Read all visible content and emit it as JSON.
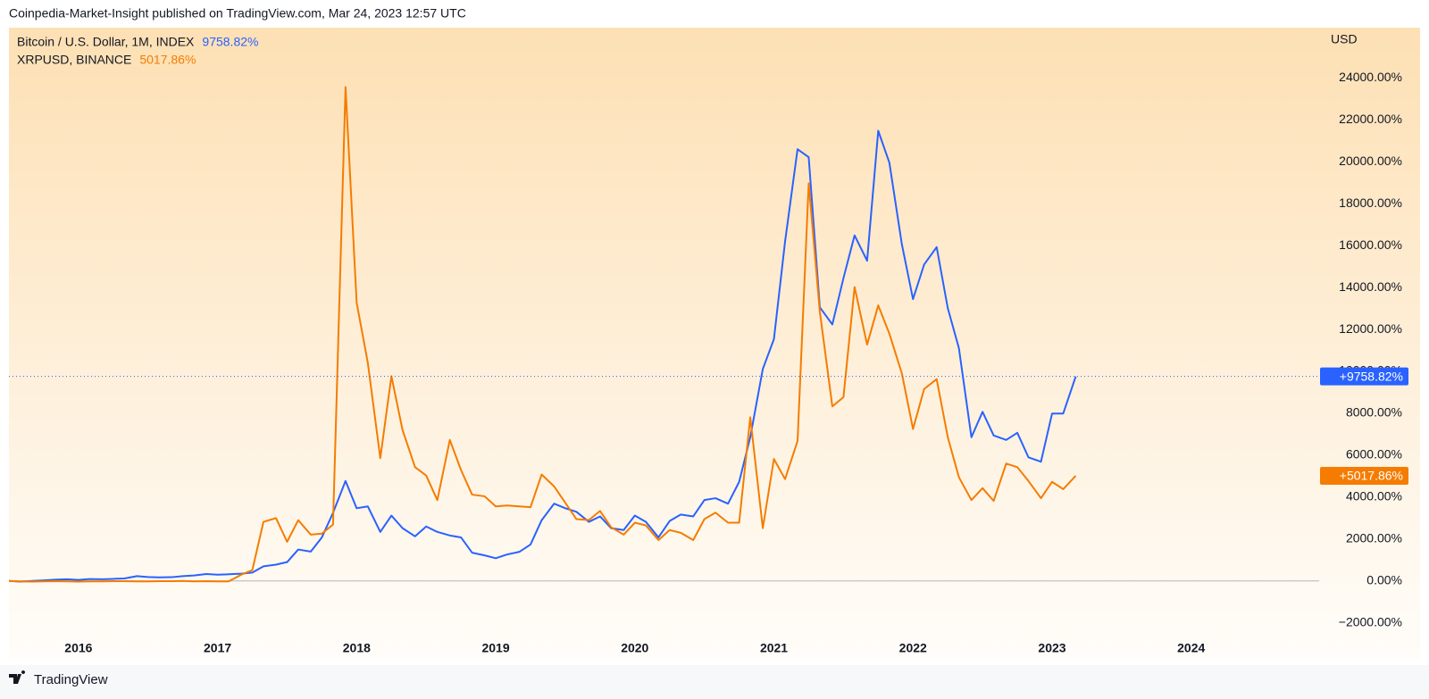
{
  "header": "Coinpedia-Market-Insight published on TradingView.com, Mar 24, 2023 12:57 UTC",
  "footer": "TradingView",
  "chart_data": {
    "type": "line",
    "y_axis_unit": "USD",
    "xlim": [
      2015.5,
      2024.92
    ],
    "xticks": [
      2016,
      2017,
      2018,
      2019,
      2020,
      2021,
      2022,
      2023,
      2024
    ],
    "ylim": [
      -3800,
      26400
    ],
    "yticks": [
      {
        "value": -2000,
        "label": "−2000.00%"
      },
      {
        "value": 0,
        "label": "0.00%"
      },
      {
        "value": 2000,
        "label": "2000.00%"
      },
      {
        "value": 4000,
        "label": "4000.00%"
      },
      {
        "value": 6000,
        "label": "6000.00%"
      },
      {
        "value": 8000,
        "label": "8000.00%"
      },
      {
        "value": 10000,
        "label": "10000.00%"
      },
      {
        "value": 12000,
        "label": "12000.00%"
      },
      {
        "value": 14000,
        "label": "14000.00%"
      },
      {
        "value": 16000,
        "label": "16000.00%"
      },
      {
        "value": 18000,
        "label": "18000.00%"
      },
      {
        "value": 20000,
        "label": "20000.00%"
      },
      {
        "value": 22000,
        "label": "22000.00%"
      },
      {
        "value": 24000,
        "label": "24000.00%"
      }
    ],
    "grid": false,
    "x": [
      2015.5,
      2015.58,
      2015.67,
      2015.75,
      2015.83,
      2015.92,
      2016,
      2016.08,
      2016.17,
      2016.25,
      2016.33,
      2016.42,
      2016.5,
      2016.58,
      2016.67,
      2016.75,
      2016.83,
      2016.92,
      2017,
      2017.08,
      2017.17,
      2017.25,
      2017.33,
      2017.42,
      2017.5,
      2017.58,
      2017.67,
      2017.75,
      2017.83,
      2017.92,
      2018,
      2018.08,
      2018.17,
      2018.25,
      2018.33,
      2018.42,
      2018.5,
      2018.58,
      2018.67,
      2018.75,
      2018.83,
      2018.92,
      2019,
      2019.08,
      2019.17,
      2019.25,
      2019.33,
      2019.42,
      2019.5,
      2019.58,
      2019.67,
      2019.75,
      2019.83,
      2019.92,
      2020,
      2020.08,
      2020.17,
      2020.25,
      2020.33,
      2020.42,
      2020.5,
      2020.58,
      2020.67,
      2020.75,
      2020.83,
      2020.92,
      2021,
      2021.08,
      2021.17,
      2021.25,
      2021.33,
      2021.42,
      2021.5,
      2021.58,
      2021.67,
      2021.75,
      2021.83,
      2021.92,
      2022,
      2022.08,
      2022.17,
      2022.25,
      2022.33,
      2022.42,
      2022.5,
      2022.58,
      2022.67,
      2022.75,
      2022.83,
      2022.92,
      2023,
      2023.08,
      2023.17
    ],
    "series": [
      {
        "name": "Bitcoin / U.S. Dollar, 1M, INDEX",
        "color": "#2962ff",
        "last_value_label": "9758.82%",
        "price_tag": "+9758.82%",
        "values": [
          0,
          -30,
          0,
          30,
          60,
          80,
          50,
          90,
          80,
          100,
          120,
          230,
          190,
          170,
          180,
          230,
          260,
          330,
          300,
          320,
          350,
          400,
          700,
          780,
          900,
          1500,
          1400,
          2080,
          3250,
          4770,
          3470,
          3560,
          2340,
          3120,
          2520,
          2130,
          2600,
          2340,
          2170,
          2080,
          1350,
          1220,
          1085,
          1260,
          1390,
          1740,
          2900,
          3690,
          3470,
          3300,
          2820,
          3080,
          2520,
          2430,
          3120,
          2820,
          2080,
          2860,
          3170,
          3080,
          3860,
          3950,
          3690,
          4730,
          6860,
          10110,
          11540,
          16190,
          20600,
          20220,
          13060,
          12240,
          14450,
          16490,
          15280,
          21480,
          19960,
          16060,
          13450,
          15100,
          15930,
          13020,
          11110,
          6860,
          8070,
          6940,
          6730,
          7070,
          5900,
          5690,
          7990,
          7990,
          9758.82
        ]
      },
      {
        "name": "XRPUSD, BINANCE",
        "color": "#f57c00",
        "last_value_label": "5017.86%",
        "price_tag": "+5017.86%",
        "values": [
          0,
          -20,
          -30,
          -20,
          -10,
          -20,
          -30,
          -20,
          -20,
          -10,
          -10,
          -20,
          -20,
          -10,
          -10,
          0,
          -20,
          -10,
          -20,
          -20,
          300,
          520,
          2820,
          3000,
          1870,
          2900,
          2210,
          2260,
          2690,
          23570,
          13280,
          10420,
          5860,
          9770,
          7200,
          5430,
          5030,
          3860,
          6730,
          5300,
          4120,
          4040,
          3560,
          3600,
          3560,
          3520,
          5080,
          4510,
          3730,
          2950,
          2910,
          3340,
          2560,
          2210,
          2780,
          2650,
          1950,
          2430,
          2300,
          1950,
          2950,
          3260,
          2780,
          2780,
          7810,
          2520,
          5820,
          4860,
          6680,
          18970,
          12850,
          8330,
          8770,
          14020,
          11280,
          13150,
          11800,
          9900,
          7250,
          9160,
          9630,
          6860,
          4950,
          3860,
          4430,
          3820,
          5600,
          5430,
          4770,
          3950,
          4730,
          4380,
          5017.86
        ]
      }
    ]
  }
}
